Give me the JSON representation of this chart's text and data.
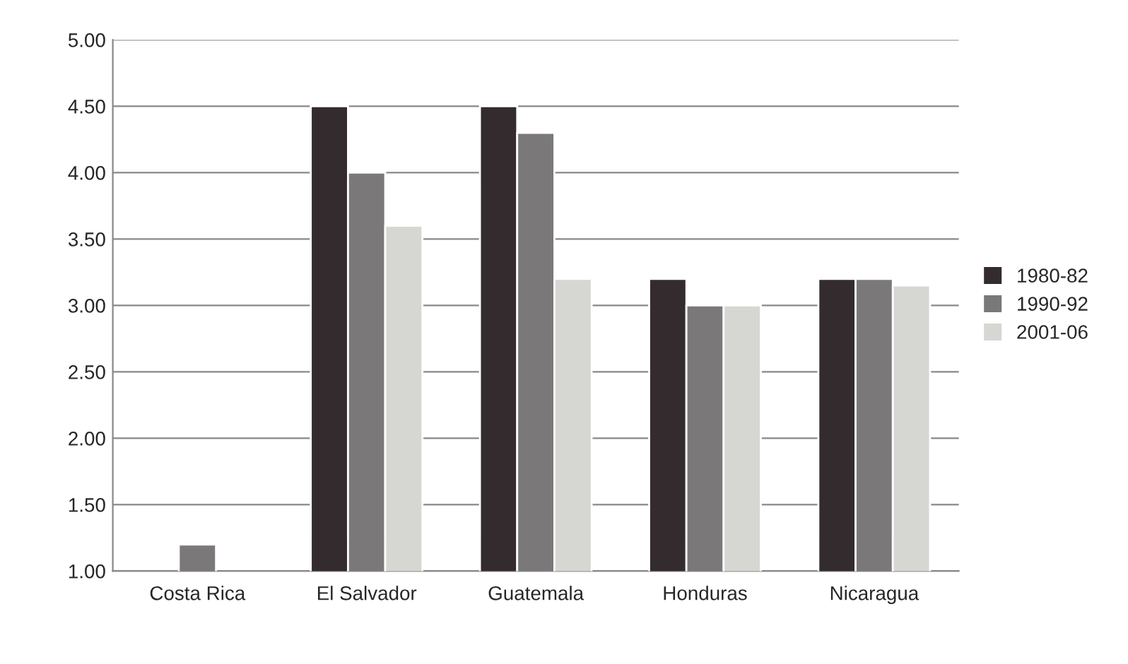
{
  "chart_data": {
    "type": "bar",
    "categories": [
      "Costa Rica",
      "El Salvador",
      "Guatemala",
      "Honduras",
      "Nicaragua"
    ],
    "series": [
      {
        "name": "1980-82",
        "color": "#332b2d",
        "values": [
          null,
          4.5,
          4.5,
          3.2,
          3.2
        ]
      },
      {
        "name": "1990-92",
        "color": "#7a7878",
        "values": [
          1.2,
          4.0,
          4.3,
          3.0,
          3.2
        ]
      },
      {
        "name": "2001-06",
        "color": "#d6d6d2",
        "values": [
          null,
          3.6,
          3.2,
          3.0,
          3.15
        ]
      }
    ],
    "ylim": [
      1.0,
      5.0
    ],
    "yticks": [
      {
        "value": 1.0,
        "label": "1.00"
      },
      {
        "value": 1.5,
        "label": "1.50"
      },
      {
        "value": 2.0,
        "label": "2.00"
      },
      {
        "value": 2.5,
        "label": "2.50"
      },
      {
        "value": 3.0,
        "label": "3.00"
      },
      {
        "value": 3.5,
        "label": "3.50"
      },
      {
        "value": 4.0,
        "label": "4.00"
      },
      {
        "value": 4.5,
        "label": "4.50"
      },
      {
        "value": 5.0,
        "label": "5.00"
      }
    ],
    "grid": "y",
    "legend": "right"
  }
}
